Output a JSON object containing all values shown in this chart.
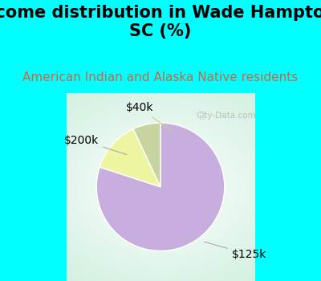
{
  "title": "Income distribution in Wade Hampton,\nSC (%)",
  "subtitle": "American Indian and Alaska Native residents",
  "slices": [
    80,
    13,
    7
  ],
  "labels": [
    "$125k",
    "$40k",
    "$200k"
  ],
  "colors": [
    "#c8aede",
    "#edf5a0",
    "#c8d4a0"
  ],
  "startangle": 90,
  "title_fontsize": 15,
  "subtitle_fontsize": 11,
  "subtitle_color": "#cc6644",
  "background_cyan": "#00ffff",
  "label_fontsize": 10,
  "watermark": "City-Data.com"
}
